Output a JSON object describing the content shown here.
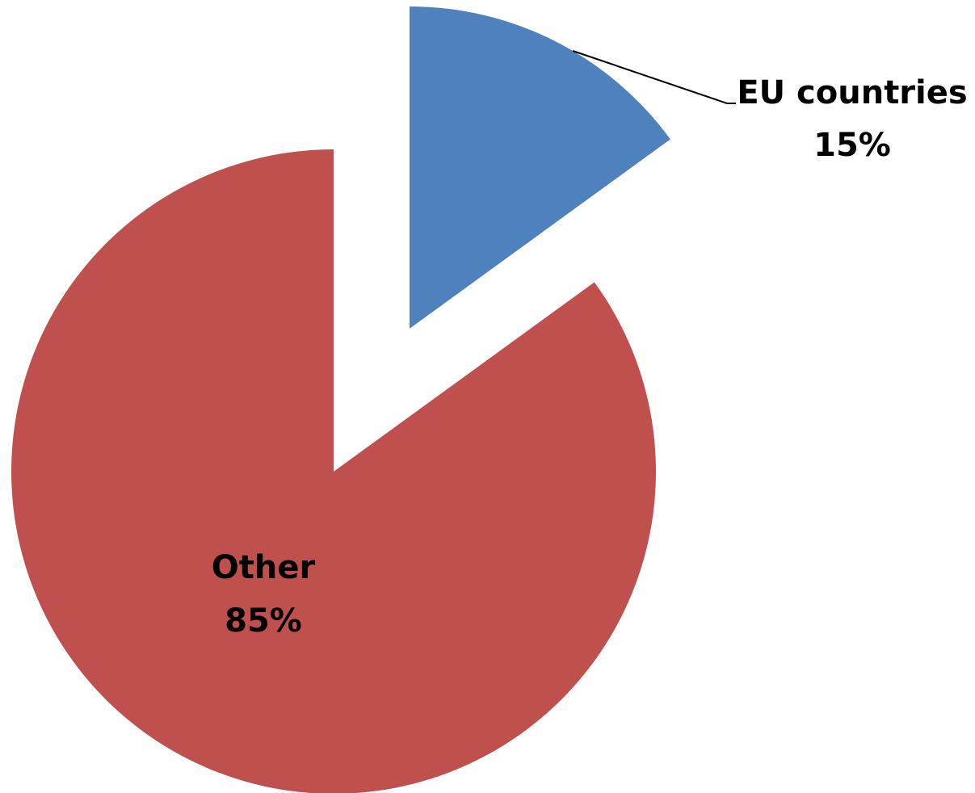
{
  "chart_data": {
    "type": "pie",
    "title": "",
    "exploded": true,
    "label_format": "category-and-percent",
    "slices": [
      {
        "label": "EU countries",
        "value": 15,
        "percent_label": "15%",
        "color": "#4F81BD"
      },
      {
        "label": "Other",
        "value": 85,
        "percent_label": "85%",
        "color": "#C0504D"
      }
    ]
  }
}
